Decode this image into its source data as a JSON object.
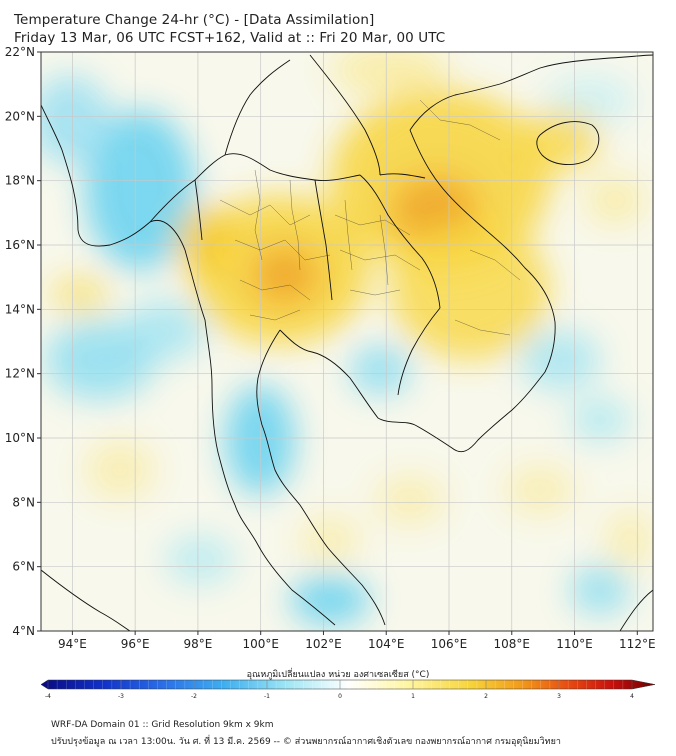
{
  "header": {
    "title_line1": "Temperature Change 24-hr (°C) - [Data Assimilation]",
    "title_line2": "Friday 13 Mar, 06 UTC FCST+162, Valid at :: Fri 20 Mar, 00 UTC"
  },
  "map": {
    "lat_labels": [
      "22°N",
      "20°N",
      "18°N",
      "16°N",
      "14°N",
      "12°N",
      "10°N",
      "8°N",
      "6°N",
      "4°N"
    ],
    "lon_labels": [
      "94°E",
      "96°E",
      "98°E",
      "100°E",
      "102°E",
      "104°E",
      "106°E",
      "108°E",
      "110°E",
      "112°E"
    ],
    "lat_range": [
      4,
      22
    ],
    "lon_range": [
      93,
      112.5
    ],
    "colors": {
      "warm": "#f5c518",
      "hot": "#f0a020",
      "cool": "#5ccff0",
      "neutral": "#f7f7ea",
      "outline": "#111111"
    }
  },
  "colorbar": {
    "title": "อุณหภูมิเปลี่ยนแปลง หน่วย องศาเซลเซียส (°C)",
    "min": -4,
    "max": 4,
    "tick_labels": [
      "-4",
      "-3",
      "-2",
      "-1",
      "0",
      "1",
      "2",
      "3",
      "4"
    ]
  },
  "footer": {
    "line1": "WRF-DA Domain 01 :: Grid Resolution 9km x 9km",
    "line2": "ปรับปรุงข้อมูล ณ เวลา 13:00น. วัน ศ. ที่ 13 มี.ค. 2569 -- © ส่วนพยากรณ์อากาศเชิงตัวเลข กองพยากรณ์อากาศ กรมอุตุนิยมวิทยา"
  }
}
